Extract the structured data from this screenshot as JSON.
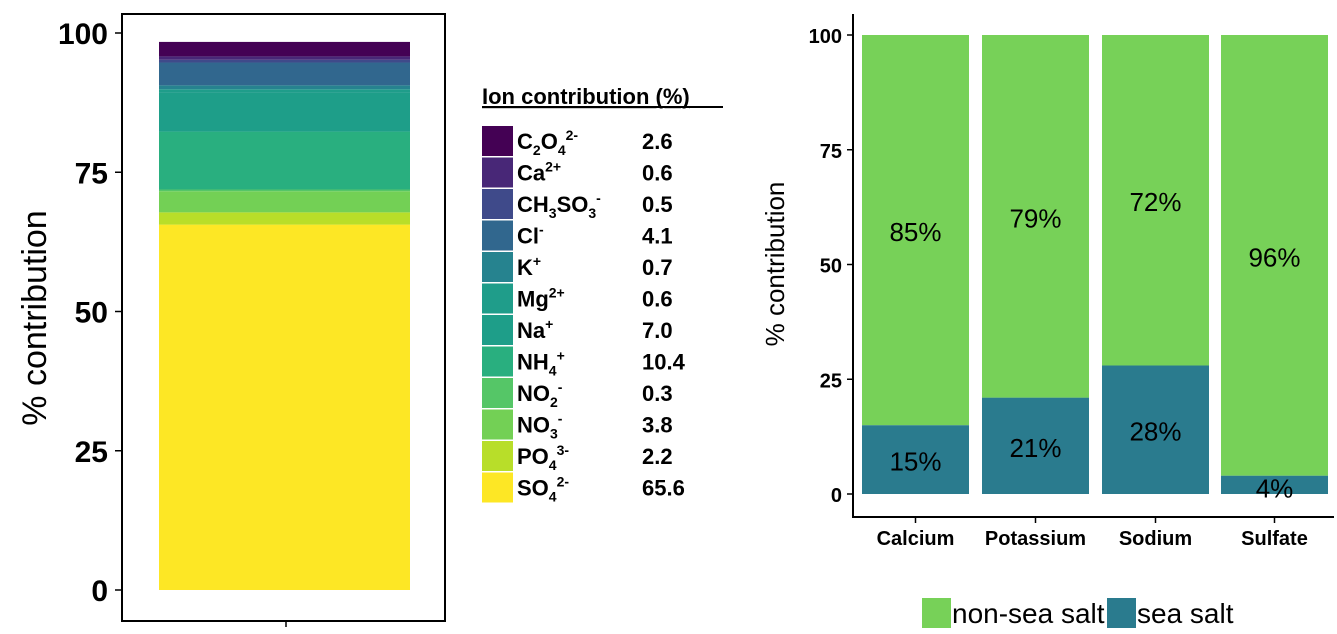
{
  "chart_data": [
    {
      "type": "bar",
      "stacked": true,
      "ylabel": "% contribution",
      "ylim": [
        0,
        100
      ],
      "yticks": [
        "0",
        "25",
        "50",
        "75",
        "100"
      ],
      "legend": {
        "title": "Ion contribution (%)",
        "placement": "right",
        "items": [
          {
            "base": "C",
            "sub1": "2",
            "mid": "O",
            "sub2": "4",
            "sup": "2-",
            "value": 2.6,
            "value_text": "2.6",
            "color": "#440154"
          },
          {
            "base": "Ca",
            "sub1": "",
            "mid": "",
            "sub2": "",
            "sup": "2+",
            "value": 0.6,
            "value_text": "0.6",
            "color": "#482777"
          },
          {
            "base": "CH",
            "sub1": "3",
            "mid": "SO",
            "sub2": "3",
            "sup": "-",
            "value": 0.5,
            "value_text": "0.5",
            "color": "#3F4A8A"
          },
          {
            "base": "Cl",
            "sub1": "",
            "mid": "",
            "sub2": "",
            "sup": "-",
            "value": 4.1,
            "value_text": "4.1",
            "color": "#31678E"
          },
          {
            "base": "K",
            "sub1": "",
            "mid": "",
            "sub2": "",
            "sup": "+",
            "value": 0.7,
            "value_text": "0.7",
            "color": "#26838F"
          },
          {
            "base": "Mg",
            "sub1": "",
            "mid": "",
            "sub2": "",
            "sup": "2+",
            "value": 0.6,
            "value_text": "0.6",
            "color": "#1F9D8A"
          },
          {
            "base": "Na",
            "sub1": "",
            "mid": "",
            "sub2": "",
            "sup": "+",
            "value": 7.0,
            "value_text": "7.0",
            "color": "#1E9E89"
          },
          {
            "base": "NH",
            "sub1": "4",
            "mid": "",
            "sub2": "",
            "sup": "+",
            "value": 10.4,
            "value_text": "10.4",
            "color": "#29AF7F"
          },
          {
            "base": "NO",
            "sub1": "2",
            "mid": "",
            "sub2": "",
            "sup": "-",
            "value": 0.3,
            "value_text": "0.3",
            "color": "#55C667"
          },
          {
            "base": "NO",
            "sub1": "3",
            "mid": "",
            "sub2": "",
            "sup": "-",
            "value": 3.8,
            "value_text": "3.8",
            "color": "#73D055"
          },
          {
            "base": "PO",
            "sub1": "4",
            "mid": "",
            "sub2": "",
            "sup": "3-",
            "value": 2.2,
            "value_text": "2.2",
            "color": "#B8DE29"
          },
          {
            "base": "SO",
            "sub1": "4",
            "mid": "",
            "sub2": "",
            "sup": "2-",
            "value": 65.6,
            "value_text": "65.6",
            "color": "#FDE725"
          }
        ]
      }
    },
    {
      "type": "bar",
      "stacked": true,
      "ylabel": "% contribution",
      "ylim": [
        0,
        100
      ],
      "yticks": [
        "0",
        "25",
        "50",
        "75",
        "100"
      ],
      "categories": [
        "Calcium",
        "Potassium",
        "Sodium",
        "Sulfate"
      ],
      "series": [
        {
          "name": "sea salt",
          "color": "#2A7B8E",
          "values": [
            15,
            21,
            28,
            4
          ],
          "labels": [
            "15%",
            "21%",
            "28%",
            "4%"
          ]
        },
        {
          "name": "non-sea salt",
          "color": "#77D158",
          "values": [
            85,
            79,
            72,
            96
          ],
          "labels": [
            "85%",
            "79%",
            "72%",
            "96%"
          ]
        }
      ],
      "legend_placement": "bottom",
      "legend_order": [
        "non-sea salt",
        "sea salt"
      ]
    }
  ]
}
